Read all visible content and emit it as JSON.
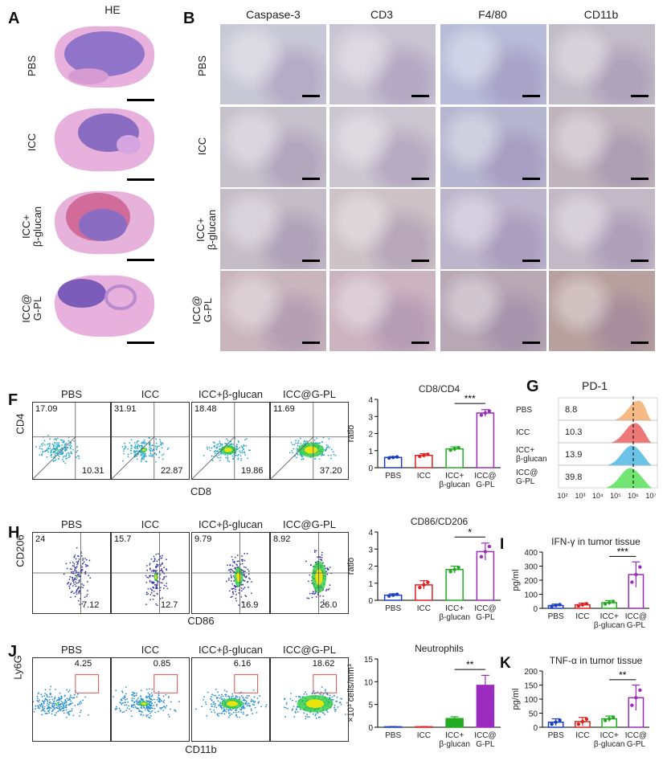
{
  "panels": {
    "A": {
      "letter": "A",
      "title": "HE"
    },
    "B": {
      "letter": "B",
      "columns": [
        "Caspase-3",
        "CD3",
        "F4/80",
        "CD11b"
      ]
    },
    "rows": [
      "PBS",
      "ICC",
      "ICC+\nβ-glucan",
      "ICC@\nG-PL"
    ],
    "F": {
      "letter": "F",
      "xlabel": "CD8",
      "ylabel": "CD4",
      "plots": [
        {
          "title": "PBS",
          "tl": "17.09",
          "br": "10.31"
        },
        {
          "title": "ICC",
          "tl": "31.91",
          "br": "22.87"
        },
        {
          "title": "ICC+β-glucan",
          "tl": "18.48",
          "br": "19.86"
        },
        {
          "title": "ICC@G-PL",
          "tl": "11.69",
          "br": "37.20"
        }
      ]
    },
    "H": {
      "letter": "H",
      "xlabel": "CD86",
      "ylabel": "CD206",
      "plots": [
        {
          "title": "PBS",
          "tl": "24",
          "br": "7.12"
        },
        {
          "title": "ICC",
          "tl": "15.7",
          "br": "12.7"
        },
        {
          "title": "ICC+β-glucan",
          "tl": "9.79",
          "br": "16.9"
        },
        {
          "title": "ICC@G-PL",
          "tl": "8.92",
          "br": "26.0"
        }
      ]
    },
    "J": {
      "letter": "J",
      "xlabel": "CD11b",
      "ylabel": "Ly6G",
      "plots": [
        {
          "title": "PBS",
          "gate": "4.25"
        },
        {
          "title": "ICC",
          "gate": "0.85"
        },
        {
          "title": "ICC+β-glucan",
          "gate": "6.16"
        },
        {
          "title": "ICC@G-PL",
          "gate": "18.62"
        }
      ]
    },
    "G": {
      "letter": "G",
      "title": "PD-1",
      "rows": [
        {
          "label": "PBS",
          "value": "8.8",
          "color": "#f4a460"
        },
        {
          "label": "ICC",
          "value": "10.3",
          "color": "#e74c4c"
        },
        {
          "label": "ICC+\nβ-glucan",
          "value": "13.9",
          "color": "#3ab0e0"
        },
        {
          "label": "ICC@\nG-PL",
          "value": "39.8",
          "color": "#44dd44"
        }
      ],
      "xticks": [
        "10²",
        "10³",
        "10⁴",
        "10⁵",
        "10⁶",
        "10⁷"
      ]
    }
  },
  "chart_data": [
    {
      "id": "F-bar",
      "letter": "",
      "type": "bar",
      "title": "CD8/CD4",
      "ylabel": "ratio",
      "ylim": [
        0,
        4
      ],
      "yticks": [
        "0",
        "1",
        "2",
        "3",
        "4"
      ],
      "categories": [
        "PBS",
        "ICC",
        "ICC+\nβ-glucan",
        "ICC@\nG-PL"
      ],
      "values": [
        0.6,
        0.72,
        1.1,
        3.2
      ],
      "errors": [
        0.05,
        0.1,
        0.12,
        0.2
      ],
      "colors": [
        "#1a3fbf",
        "#dd2222",
        "#22aa22",
        "#9b2cbf"
      ],
      "filled": false,
      "sig": "***"
    },
    {
      "id": "H-bar",
      "letter": "",
      "type": "bar",
      "title": "CD86/CD206",
      "ylabel": "ratio",
      "ylim": [
        0,
        4
      ],
      "yticks": [
        "0",
        "1",
        "2",
        "3",
        "4"
      ],
      "categories": [
        "PBS",
        "ICC",
        "ICC+\nβ-glucan",
        "ICC@\nG-PL"
      ],
      "values": [
        0.3,
        0.9,
        1.8,
        2.85
      ],
      "errors": [
        0.08,
        0.25,
        0.2,
        0.5
      ],
      "colors": [
        "#1a3fbf",
        "#dd2222",
        "#22aa22",
        "#9b2cbf"
      ],
      "filled": false,
      "sig": "*"
    },
    {
      "id": "J-bar",
      "letter": "",
      "type": "bar",
      "title": "Neutrophils",
      "ylabel": "×10³ cells/mm³",
      "ylim": [
        0,
        15
      ],
      "yticks": [
        "0",
        "5",
        "10",
        "15"
      ],
      "categories": [
        "PBS",
        "ICC",
        "ICC+\nβ-glucan",
        "ICC@\nG-PL"
      ],
      "values": [
        0.1,
        0.1,
        1.9,
        9.2
      ],
      "errors": [
        0.05,
        0.05,
        0.4,
        2.2
      ],
      "colors": [
        "#1a3fbf",
        "#dd2222",
        "#22aa22",
        "#9b2cbf"
      ],
      "filled": true,
      "sig": "**"
    },
    {
      "id": "I-bar",
      "letter": "I",
      "type": "bar",
      "title": "IFN-γ in tumor tissue",
      "ylabel": "pg/ml",
      "ylim": [
        0,
        400
      ],
      "yticks": [
        "0",
        "100",
        "200",
        "300",
        "400"
      ],
      "categories": [
        "PBS",
        "ICC",
        "ICC+\nβ-glucan",
        "ICC@\nG-PL"
      ],
      "values": [
        20,
        25,
        40,
        240
      ],
      "errors": [
        10,
        12,
        15,
        90
      ],
      "colors": [
        "#1a3fbf",
        "#dd2222",
        "#22aa22",
        "#9b2cbf"
      ],
      "filled": false,
      "sig": "***"
    },
    {
      "id": "K-bar",
      "letter": "K",
      "type": "bar",
      "title": "TNF-α in tumor tissue",
      "ylabel": "pg/ml",
      "ylim": [
        0,
        200
      ],
      "yticks": [
        "0",
        "50",
        "100",
        "150",
        "200"
      ],
      "categories": [
        "PBS",
        "ICC",
        "ICC+\nβ-glucan",
        "ICC@\nG-PL"
      ],
      "values": [
        18,
        20,
        30,
        105
      ],
      "errors": [
        12,
        15,
        10,
        45
      ],
      "colors": [
        "#1a3fbf",
        "#dd2222",
        "#22aa22",
        "#9b2cbf"
      ],
      "filled": false,
      "sig": "**"
    }
  ]
}
